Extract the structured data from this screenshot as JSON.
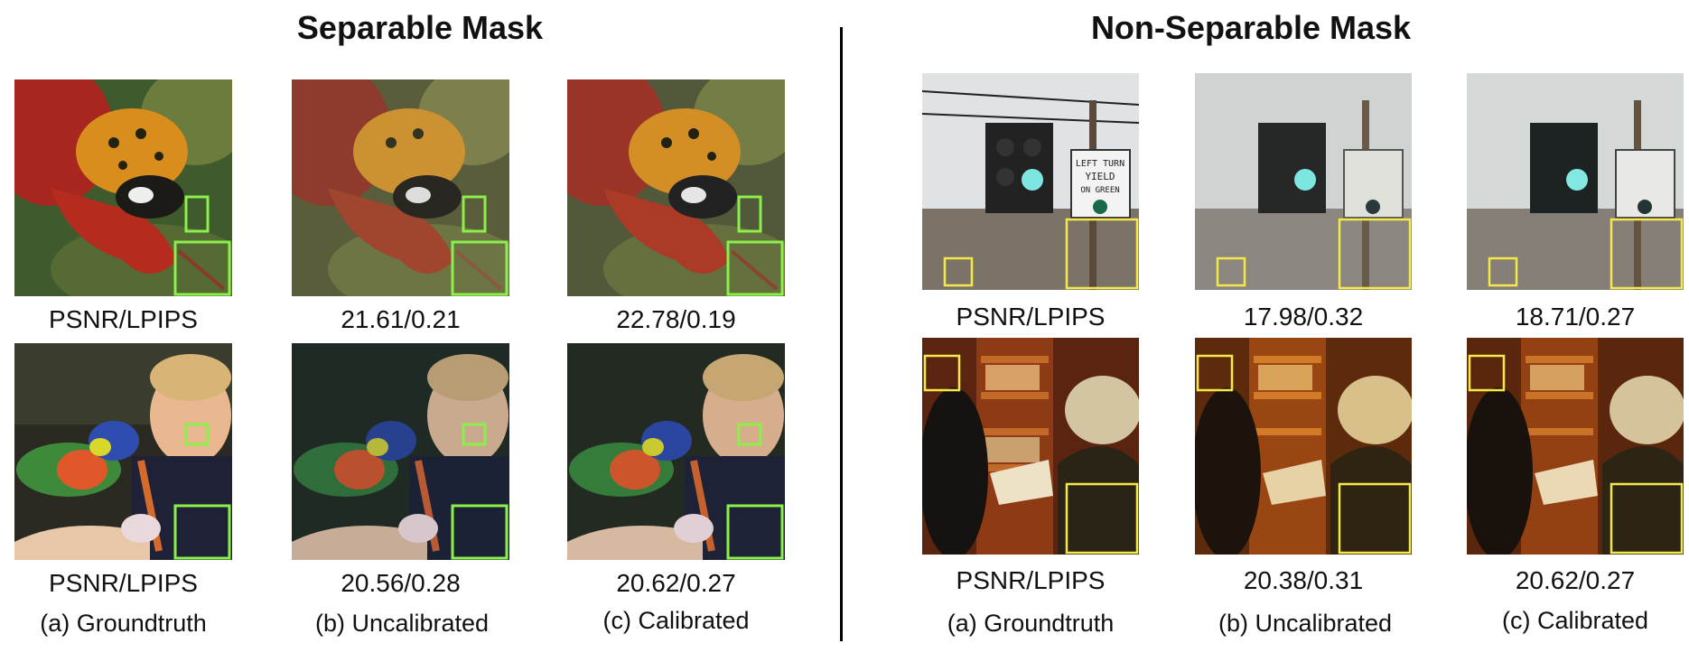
{
  "left_panel": {
    "title": "Separable Mask",
    "row1_metrics": [
      "PSNR/LPIPS",
      "21.61/0.21",
      "22.78/0.19"
    ],
    "row2_metrics": [
      "PSNR/LPIPS",
      "20.56/0.28",
      "20.62/0.27"
    ],
    "captions": [
      "(a) Groundtruth",
      "(b) Uncalibrated",
      "(c) Calibrated"
    ],
    "zoom_box_color": "#8cf04a"
  },
  "right_panel": {
    "title": "Non-Separable Mask",
    "row1_metrics": [
      "PSNR/LPIPS",
      "17.98/0.32",
      "18.71/0.27"
    ],
    "row2_metrics": [
      "PSNR/LPIPS",
      "20.38/0.31",
      "20.62/0.27"
    ],
    "captions": [
      "(a) Groundtruth",
      "(b) Uncalibrated",
      "(c) Calibrated"
    ],
    "zoom_box_color": "#f4e84a",
    "sign_text": [
      "LEFT TURN",
      "YIELD",
      "ON GREEN"
    ]
  }
}
